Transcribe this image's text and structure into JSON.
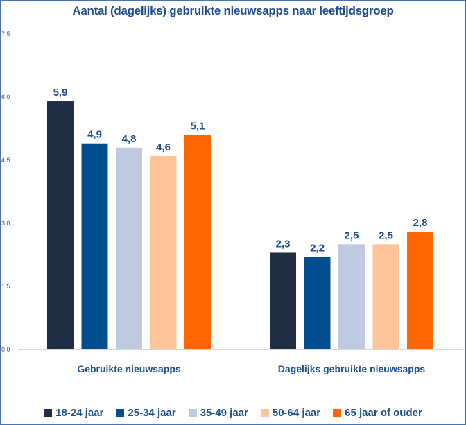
{
  "chart_data": {
    "type": "bar",
    "title": "Aantal (dagelijks) gebruikte nieuwsapps naar leeftijdsgroep",
    "categories": [
      "Gebruikte nieuwsapps",
      "Dagelijks gebruikte nieuwsapps"
    ],
    "series": [
      {
        "name": "18-24 jaar",
        "color": "#1f2d45",
        "values": [
          5.9,
          2.3
        ],
        "labels": [
          "5,9",
          "2,3"
        ]
      },
      {
        "name": "25-34 jaar",
        "color": "#004d8f",
        "values": [
          4.9,
          2.2
        ],
        "labels": [
          "4,9",
          "2,2"
        ]
      },
      {
        "name": "35-49 jaar",
        "color": "#bfcae2",
        "values": [
          4.8,
          2.5
        ],
        "labels": [
          "4,8",
          "2,5"
        ]
      },
      {
        "name": "50-64 jaar",
        "color": "#ffc499",
        "values": [
          4.6,
          2.5
        ],
        "labels": [
          "4,6",
          "2,5"
        ]
      },
      {
        "name": "65 jaar of ouder",
        "color": "#ff6600",
        "values": [
          5.1,
          2.8
        ],
        "labels": [
          "5,1",
          "2,8"
        ]
      }
    ],
    "yticks": [
      0,
      1.5,
      3.0,
      4.5,
      6.0,
      7.5
    ],
    "ytick_labels": [
      "0,0",
      "1,5",
      "3,0",
      "4,5",
      "6,0",
      "7,5"
    ],
    "ylim": [
      0,
      7.5
    ],
    "xlabel": "",
    "ylabel": "",
    "grid": false,
    "legend": "bottom"
  }
}
